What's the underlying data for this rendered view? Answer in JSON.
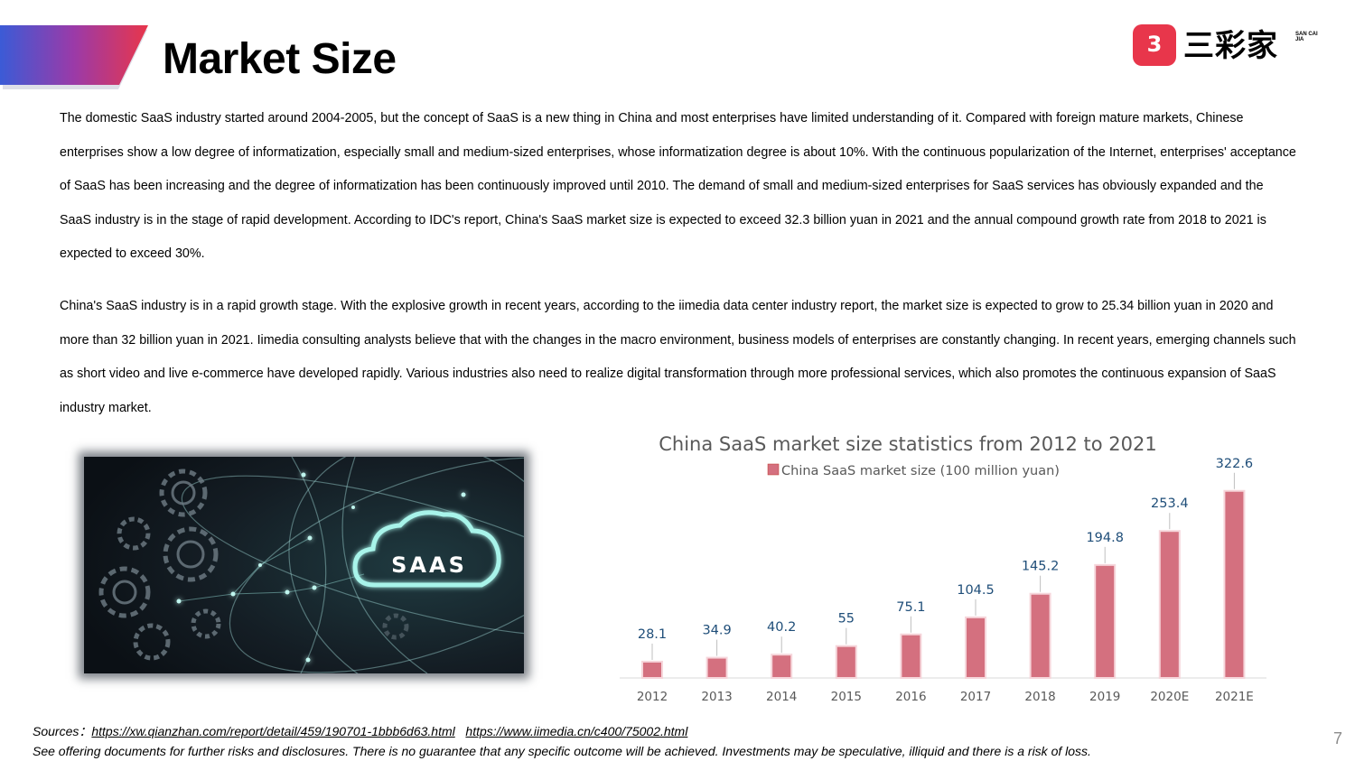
{
  "header": {
    "title": "Market Size",
    "accent_colors": [
      "#3b5bd6",
      "#9b3aa8",
      "#e8364b"
    ]
  },
  "logo": {
    "badge_text": "3",
    "name": "三彩家",
    "subtitle": "SAN CAI JIA",
    "brand_color": "#e8364b"
  },
  "body": {
    "paragraph1": "The domestic SaaS industry started around 2004-2005, but the concept of SaaS is a new thing in China and most enterprises have limited understanding of it. Compared with foreign mature markets, Chinese enterprises show a low degree of informatization, especially small and medium-sized enterprises, whose informatization degree is about 10%. With the continuous popularization of the Internet, enterprises' acceptance of SaaS has been increasing and the degree of informatization has been continuously improved  until 2010. The demand of small and medium-sized enterprises for SaaS services has obviously expanded and the SaaS industry is in the stage of rapid development. According to IDC's report, China's SaaS market size is expected to exceed 32.3 billion yuan in 2021 and the annual compound growth rate from 2018 to 2021 is expected to exceed 30%.",
    "paragraph2": "China's SaaS industry is in a rapid growth stage. With the explosive growth in recent years, according to the iimedia data center industry report, the market size is expected to grow to 25.34 billion yuan in 2020 and more than 32 billion yuan in 2021. Iimedia consulting analysts believe that with the changes in the macro environment, business models of enterprises are constantly changing. In recent years, emerging channels such as short video and live e-commerce have developed rapidly. Various industries also need to realize digital transformation through more professional services, which also promotes the continuous expansion of SaaS industry market."
  },
  "image": {
    "cloud_text": "SAAS",
    "icon": "saas-cloud-gears-illustration"
  },
  "chart_data": {
    "type": "bar",
    "title": "China SaaS market size statistics from 2012 to 2021",
    "categories": [
      "2012",
      "2013",
      "2014",
      "2015",
      "2016",
      "2017",
      "2018",
      "2019",
      "2020E",
      "2021E"
    ],
    "series": [
      {
        "name": "China SaaS market size (100 million yuan)",
        "values": [
          28.1,
          34.9,
          40.2,
          55,
          75.1,
          104.5,
          145.2,
          194.8,
          253.4,
          322.6
        ],
        "color": "#d4707f"
      }
    ],
    "xlabel": "",
    "ylabel": "",
    "ylim": [
      0,
      330
    ],
    "legend": "top-center",
    "grid": false,
    "label_color": "#1f4e79",
    "axis_text_color": "#595959"
  },
  "footer": {
    "sources_label": "Sources：",
    "source_link_1": "https://xw.qianzhan.com/report/detail/459/190701-1bbb6d63.html",
    "source_link_2": "https://www.iimedia.cn/c400/75002.html",
    "disclaimer": "See offering documents for further risks and disclosures. There is no guarantee that any specific outcome will be achieved. Investments may be speculative, illiquid and there is a risk of loss.",
    "page_number": "7"
  }
}
